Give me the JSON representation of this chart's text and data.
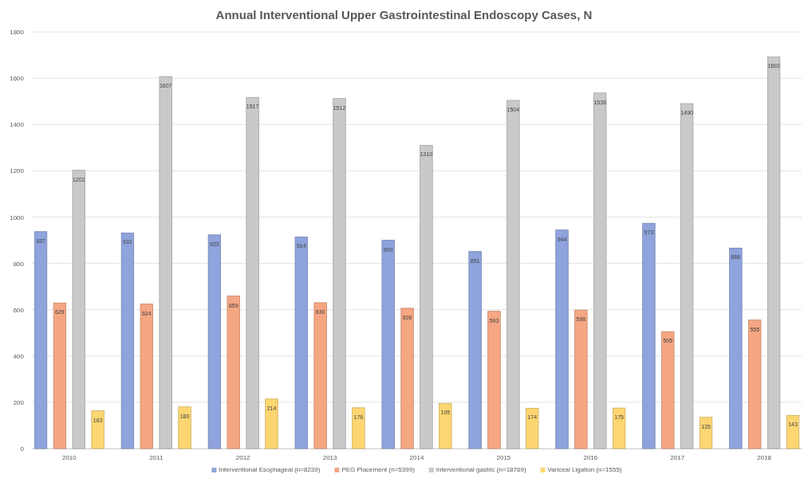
{
  "chart_data": {
    "type": "bar",
    "title": "Annual Interventional Upper Gastrointestinal Endoscopy Cases, N",
    "categories": [
      "2010",
      "2011",
      "2012",
      "2013",
      "2014",
      "2015",
      "2016",
      "2017",
      "2018"
    ],
    "series": [
      {
        "name": "Interventional Esophageal (n=8239)",
        "color": "#8fa3dc",
        "values": [
          937,
          931,
          923,
          914,
          900,
          851,
          944,
          973,
          866
        ]
      },
      {
        "name": "PEG Placement (n=5399)",
        "color": "#f5a683",
        "values": [
          629,
          624,
          659,
          630,
          606,
          593,
          598,
          505,
          555
        ]
      },
      {
        "name": "Interventional gastric (n=18769)",
        "color": "#c9c9c9",
        "values": [
          1202,
          1607,
          1517,
          1512,
          1310,
          1504,
          1536,
          1490,
          1692
        ]
      },
      {
        "name": "Variceal Ligation (n=1555)",
        "color": "#fdd672",
        "values": [
          163,
          180,
          214,
          176,
          195,
          174,
          175,
          135,
          143
        ]
      }
    ],
    "ylim": [
      0,
      1800
    ],
    "yticks": [
      0,
      200,
      400,
      600,
      800,
      1000,
      1200,
      1400,
      1600,
      1800
    ],
    "grid": "y",
    "legend": "bottom",
    "data_labels": true
  }
}
